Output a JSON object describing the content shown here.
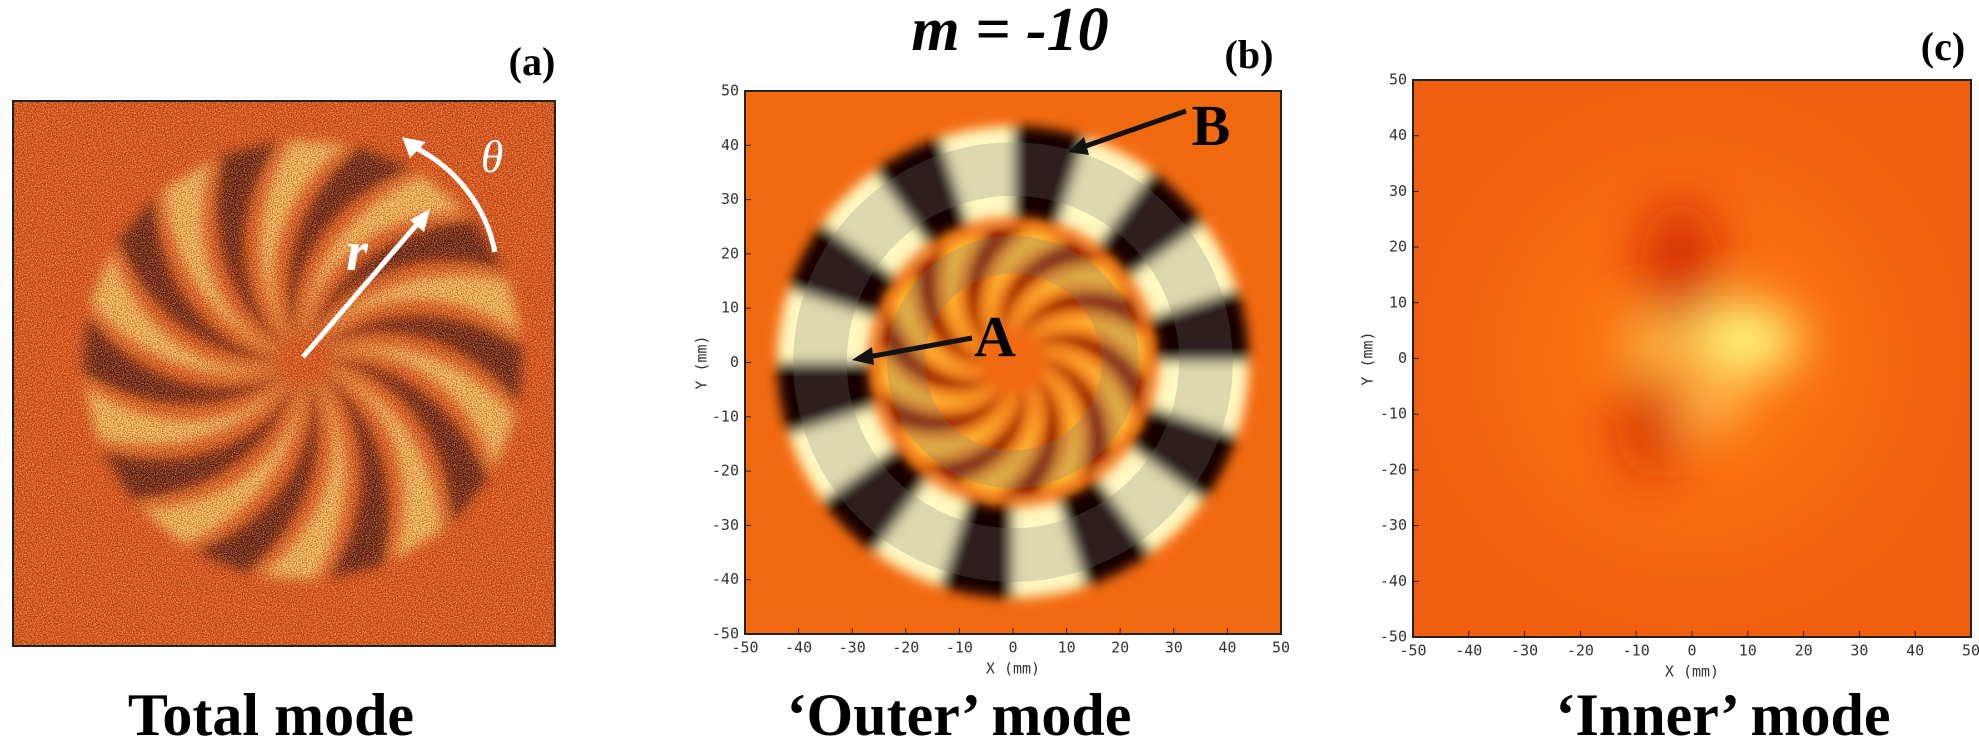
{
  "title": "m = -10",
  "panels": [
    {
      "label": "(a)",
      "caption": "Total mode",
      "annotations": [
        "r",
        "θ"
      ]
    },
    {
      "label": "(b)",
      "caption": "‘Outer’ mode",
      "x_label": "X (mm)",
      "y_label": "Y (mm)",
      "xlim": [
        -50,
        50
      ],
      "ylim": [
        -50,
        50
      ],
      "xticks": [
        -50,
        -40,
        -30,
        -20,
        -10,
        0,
        10,
        20,
        30,
        40,
        50
      ],
      "yticks": [
        -50,
        -40,
        -30,
        -20,
        -10,
        0,
        10,
        20,
        30,
        40,
        50
      ],
      "annotations": [
        "A",
        "B"
      ]
    },
    {
      "label": "(c)",
      "caption": "‘Inner’ mode",
      "x_label": "X (mm)",
      "y_label": "Y (mm)",
      "xlim": [
        -50,
        50
      ],
      "ylim": [
        -50,
        50
      ],
      "xticks": [
        -50,
        -40,
        -30,
        -20,
        -10,
        0,
        10,
        20,
        30,
        40,
        50
      ],
      "yticks": [
        -50,
        -40,
        -30,
        -20,
        -10,
        0,
        10,
        20,
        30,
        40,
        50
      ]
    }
  ]
}
